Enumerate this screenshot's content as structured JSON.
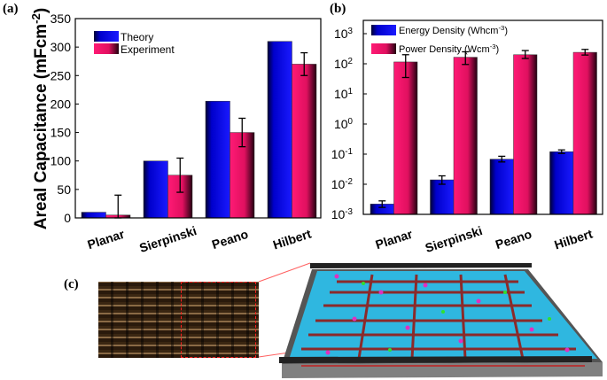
{
  "panels": {
    "a": "(a)",
    "b": "(b)",
    "c": "(c)"
  },
  "colors": {
    "theory": "#1010ff",
    "experiment": "#ff1a75",
    "energy": "#1010ff",
    "power": "#ff1a75"
  },
  "chart_data": [
    {
      "type": "bar",
      "categories": [
        "Planar",
        "Sierpinski",
        "Peano",
        "Hilbert"
      ],
      "ylabel": "Areal Capacitance (mFcm-2)",
      "ylabel_main": "Areal Capacitance (mFcm",
      "ylabel_exp": "-2",
      "ylabel_close": ")",
      "ylim": [
        0,
        350
      ],
      "yticks": [
        0,
        50,
        100,
        150,
        200,
        250,
        300,
        350
      ],
      "legend_position": "top-left",
      "series": [
        {
          "name": "Theory",
          "values": [
            10,
            100,
            205,
            310
          ]
        },
        {
          "name": "Experiment",
          "values": [
            5,
            75,
            150,
            270
          ],
          "error": [
            35,
            30,
            25,
            20
          ]
        }
      ]
    },
    {
      "type": "bar",
      "categories": [
        "Planar",
        "Sierpinski",
        "Peano",
        "Hilbert"
      ],
      "yscale": "log",
      "ylim": [
        0.001,
        2800
      ],
      "yticks": [
        "10^-3",
        "10^-2",
        "10^-1",
        "10^0",
        "10^1",
        "10^2",
        "10^3"
      ],
      "legend_position": "top-left",
      "series": [
        {
          "name": "Energy Density (Whcm-3)",
          "label_main": "Energy Density (Whcm",
          "label_exp": "-3",
          "label_close": ")",
          "values": [
            0.0022,
            0.014,
            0.068,
            0.12
          ],
          "error_low": [
            0.0017,
            0.01,
            0.055,
            0.105
          ],
          "error_high": [
            0.0028,
            0.019,
            0.085,
            0.138
          ]
        },
        {
          "name": "Power Density (Wcm-3)",
          "label_main": "Power Density (Wcm",
          "label_exp": "-3",
          "label_close": ")",
          "values": [
            115,
            165,
            200,
            240
          ],
          "error_low": [
            35,
            95,
            150,
            195
          ],
          "error_high": [
            200,
            250,
            275,
            300
          ]
        }
      ]
    }
  ]
}
